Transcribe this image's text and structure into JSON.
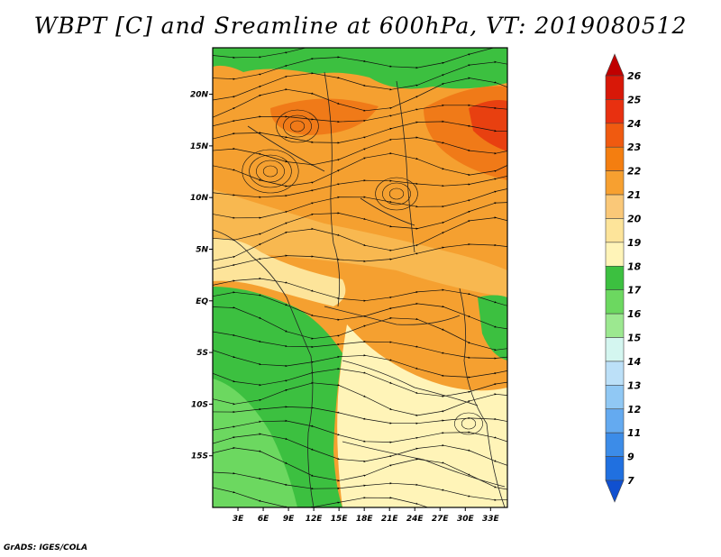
{
  "title": "WBPT [C] and Sreamline at 600hPa, VT: 2019080512",
  "credit": "GrADS: IGES/COLA",
  "map": {
    "lat_range": [
      -20,
      24.5
    ],
    "lon_range": [
      0,
      35
    ],
    "lat_ticks": [
      {
        "lat": 20,
        "label": "20N"
      },
      {
        "lat": 15,
        "label": "15N"
      },
      {
        "lat": 10,
        "label": "10N"
      },
      {
        "lat": 5,
        "label": "5N"
      },
      {
        "lat": 0,
        "label": "EQ"
      },
      {
        "lat": -5,
        "label": "5S"
      },
      {
        "lat": -10,
        "label": "10S"
      },
      {
        "lat": -15,
        "label": "15S"
      }
    ],
    "lon_ticks": [
      {
        "lon": 3,
        "label": "3E"
      },
      {
        "lon": 6,
        "label": "6E"
      },
      {
        "lon": 9,
        "label": "9E"
      },
      {
        "lon": 12,
        "label": "12E"
      },
      {
        "lon": 15,
        "label": "15E"
      },
      {
        "lon": 18,
        "label": "18E"
      },
      {
        "lon": 21,
        "label": "21E"
      },
      {
        "lon": 24,
        "label": "24E"
      },
      {
        "lon": 27,
        "label": "27E"
      },
      {
        "lon": 30,
        "label": "30E"
      },
      {
        "lon": 33,
        "label": "33E"
      }
    ]
  },
  "colorbar": {
    "labels": [
      "26",
      "25",
      "24",
      "23",
      "22",
      "21",
      "20",
      "19",
      "18",
      "17",
      "16",
      "15",
      "14",
      "13",
      "12",
      "11",
      "9",
      "7"
    ],
    "colors": [
      "#c00000",
      "#d81808",
      "#e83010",
      "#f05a10",
      "#f47e10",
      "#f7a030",
      "#fac878",
      "#fde49a",
      "#fff4b8",
      "#3cc040",
      "#6cd860",
      "#9ce890",
      "#d4f6f0",
      "#bce0f8",
      "#90c8f4",
      "#64aaf0",
      "#3c8ce8",
      "#2070e0",
      "#1050d0"
    ]
  },
  "palette": {
    "orange_dark": "#f07a18",
    "orange": "#f5a030",
    "orange_light": "#f8b850",
    "yellow": "#fde49a",
    "yellow_light": "#fff4b8",
    "green": "#3cc040",
    "green_light": "#6cd860",
    "red": "#e84010"
  }
}
